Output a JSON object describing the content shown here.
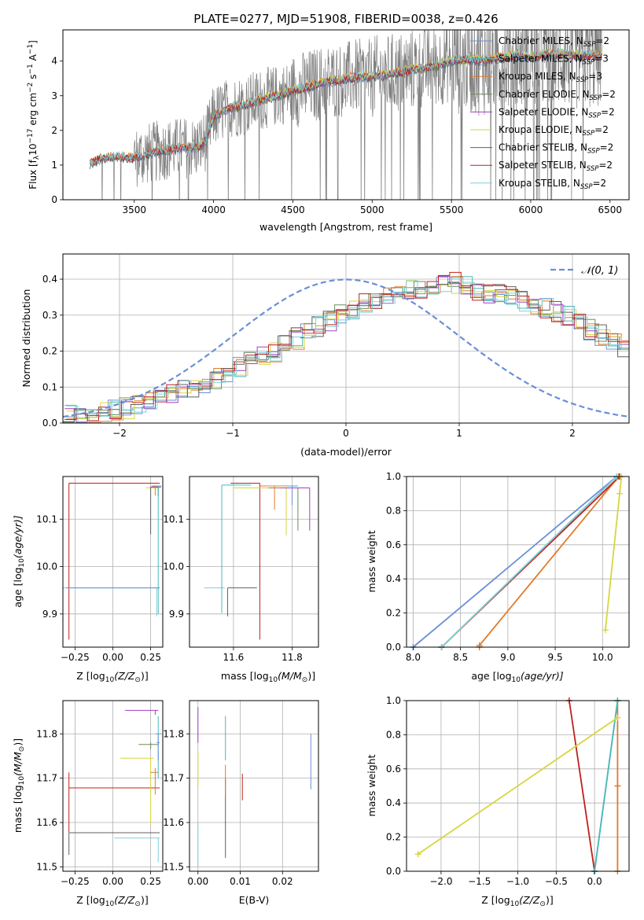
{
  "title": "PLATE=0277, MJD=51908, FIBERID=0038, z=0.426",
  "colors": {
    "chabrier_miles": "#6a8fd8",
    "salpeter_miles": "#4bb8b8",
    "kroupa_miles": "#e07b2a",
    "chabrier_elodie": "#6e8c5a",
    "salpeter_elodie": "#a040c0",
    "kroupa_elodie": "#d6d640",
    "chabrier_stelib": "#606060",
    "salpeter_stelib": "#c0201c",
    "kroupa_stelib": "#7fd0d8",
    "data_spectrum": "#808080",
    "normal_curve": "#6a8fd8"
  },
  "chart_data": [
    {
      "type": "line",
      "id": "spectrum",
      "title": "PLATE=0277, MJD=51908, FIBERID=0038, z=0.426",
      "xlabel": "wavelength [Angstrom, rest frame]",
      "ylabel_main": "Flux [f",
      "ylabel_sub": "λ",
      "ylabel_rest": "10",
      "ylabel_exp": "−17",
      "ylabel_tail": " erg cm",
      "ylabel_exp2": "−2",
      "ylabel_tail2": " s",
      "ylabel_exp3": "−1",
      "ylabel_tail3": " A",
      "ylabel_exp4": "−1",
      "ylabel_end": "]",
      "xlim": [
        3050,
        6620
      ],
      "ylim": [
        0,
        4.9
      ],
      "xticks": [
        3500,
        4000,
        4500,
        5000,
        5500,
        6000,
        6500
      ],
      "yticks": [
        0,
        1,
        2,
        3,
        4
      ],
      "legend_position": "top-right",
      "legend": [
        {
          "name": "Chabrier MILES, N",
          "sub": "SSP",
          "tail": "=2",
          "color": "chabrier_miles"
        },
        {
          "name": "Salpeter MILES, N",
          "sub": "SSP",
          "tail": "=3",
          "color": "salpeter_miles"
        },
        {
          "name": "Kroupa MILES, N",
          "sub": "SSP",
          "tail": "=3",
          "color": "kroupa_miles"
        },
        {
          "name": "Chabrier ELODIE, N",
          "sub": "SSP",
          "tail": "=2",
          "color": "chabrier_elodie"
        },
        {
          "name": "Salpeter ELODIE, N",
          "sub": "SSP",
          "tail": "=2",
          "color": "salpeter_elodie"
        },
        {
          "name": "Kroupa ELODIE, N",
          "sub": "SSP",
          "tail": "=2",
          "color": "kroupa_elodie"
        },
        {
          "name": "Chabrier STELIB, N",
          "sub": "SSP",
          "tail": "=2",
          "color": "chabrier_stelib"
        },
        {
          "name": "Salpeter STELIB, N",
          "sub": "SSP",
          "tail": "=2",
          "color": "salpeter_stelib"
        },
        {
          "name": "Kroupa STELIB, N",
          "sub": "SSP",
          "tail": "=2",
          "color": "kroupa_stelib"
        }
      ],
      "model_envelope": {
        "x": [
          3220,
          3300,
          3400,
          3500,
          3600,
          3700,
          3800,
          3900,
          3950,
          4000,
          4100,
          4200,
          4300,
          4400,
          4500,
          4600,
          4700,
          4800,
          4900,
          5000,
          5100,
          5200,
          5300,
          5400,
          5500,
          5600,
          5700,
          5800,
          5900,
          6000,
          6100,
          6200,
          6300,
          6450
        ],
        "y": [
          1.05,
          1.2,
          1.25,
          1.2,
          1.35,
          1.45,
          1.5,
          1.5,
          1.7,
          2.4,
          2.65,
          2.75,
          2.9,
          3.0,
          3.15,
          3.25,
          3.4,
          3.45,
          3.55,
          3.55,
          3.6,
          3.7,
          3.8,
          3.85,
          4.0,
          4.05,
          4.0,
          4.1,
          4.15,
          4.1,
          4.2,
          4.2,
          4.15,
          4.2
        ]
      }
    },
    {
      "type": "bar",
      "id": "residuals",
      "xlabel": "(data-model)/error",
      "ylabel": "Normed distribution",
      "xlim": [
        -2.5,
        2.5
      ],
      "ylim": [
        0,
        0.47
      ],
      "xticks": [
        -2,
        -1,
        0,
        1,
        2
      ],
      "xtick_labels": [
        "−2",
        "−1",
        "0",
        "1",
        "2"
      ],
      "yticks": [
        0.0,
        0.1,
        0.2,
        0.3,
        0.4
      ],
      "ytick_labels": [
        "0.0",
        "0.1",
        "0.2",
        "0.3",
        "0.4"
      ],
      "legend_math": "𝒩(0, 1)",
      "bin_width": 0.1,
      "bin_start": -2.5,
      "histogram_base": [
        0.02,
        0.02,
        0.025,
        0.03,
        0.035,
        0.04,
        0.05,
        0.06,
        0.07,
        0.08,
        0.09,
        0.1,
        0.11,
        0.125,
        0.14,
        0.155,
        0.17,
        0.185,
        0.2,
        0.215,
        0.235,
        0.255,
        0.27,
        0.285,
        0.3,
        0.315,
        0.33,
        0.34,
        0.35,
        0.36,
        0.37,
        0.37,
        0.38,
        0.39,
        0.39,
        0.38,
        0.37,
        0.36,
        0.355,
        0.35,
        0.34,
        0.33,
        0.32,
        0.31,
        0.3,
        0.28,
        0.26,
        0.245,
        0.23,
        0.21
      ]
    },
    {
      "type": "scatter",
      "id": "age_vs_Z",
      "xlabel": "Z [log",
      "xlabel_sub": "10",
      "xlabel_mid": "(Z/Z",
      "xlabel_sub2": "⊙",
      "xlabel_end": ")]",
      "ylabel": "age  [log",
      "ylabel_sub": "10",
      "ylabel_end": "(age/yr)]",
      "xlim": [
        -0.33,
        0.33
      ],
      "ylim": [
        9.83,
        10.19
      ],
      "xticks": [
        -0.25,
        0.0,
        0.25
      ],
      "xtick_labels": [
        "−0.25",
        "0.00",
        "0.25"
      ],
      "yticks": [
        9.9,
        10.0,
        10.1
      ],
      "ytick_labels": [
        "9.9",
        "10.0",
        "10.1"
      ]
    },
    {
      "type": "scatter",
      "id": "age_vs_mass",
      "xlabel": "mass [log",
      "xlabel_sub": "10",
      "xlabel_mid": "(M/M",
      "xlabel_sub2": "⊙",
      "xlabel_end": ")]",
      "xlim": [
        11.45,
        11.89
      ],
      "ylim": [
        9.83,
        10.19
      ],
      "xticks": [
        11.6,
        11.8
      ],
      "xtick_labels": [
        "11.6",
        "11.8"
      ],
      "yticks": [
        9.9,
        10.0,
        10.1
      ],
      "ytick_labels": [
        "9.9",
        "10.0",
        "10.1"
      ]
    },
    {
      "type": "line",
      "id": "cumulative_mass_vs_age",
      "xlabel": "age  [log",
      "xlabel_sub": "10",
      "xlabel_end": "(age/yr)]",
      "ylabel": "mass weight",
      "xlim": [
        7.93,
        10.28
      ],
      "ylim": [
        0,
        1
      ],
      "xticks": [
        8.0,
        8.5,
        9.0,
        9.5,
        10.0
      ],
      "xtick_labels": [
        "8.0",
        "8.5",
        "9.0",
        "9.5",
        "10.0"
      ],
      "yticks": [
        0.0,
        0.2,
        0.4,
        0.6,
        0.8,
        1.0
      ],
      "ytick_labels": [
        "0.0",
        "0.2",
        "0.4",
        "0.6",
        "0.8",
        "1.0"
      ],
      "series": [
        {
          "color": "chabrier_miles",
          "x": [
            8.0,
            10.15
          ],
          "y": [
            0.0,
            1.0
          ]
        },
        {
          "color": "kroupa_miles",
          "x": [
            8.7,
            8.7,
            10.17
          ],
          "y": [
            0.0,
            0.01,
            1.0
          ]
        },
        {
          "color": "salpeter_miles",
          "x": [
            8.3,
            10.15
          ],
          "y": [
            0.0,
            1.0
          ]
        },
        {
          "color": "salpeter_stelib",
          "x": [
            8.3,
            10.18
          ],
          "y": [
            0.0,
            1.0
          ]
        },
        {
          "color": "kroupa_stelib",
          "x": [
            8.3,
            10.15
          ],
          "y": [
            0.0,
            1.0
          ]
        },
        {
          "color": "kroupa_elodie",
          "x": [
            10.03,
            10.18,
            10.2
          ],
          "y": [
            0.1,
            0.9,
            1.0
          ]
        }
      ]
    },
    {
      "type": "scatter",
      "id": "mass_vs_Z",
      "xlabel": "Z [log",
      "xlabel_sub": "10",
      "xlabel_mid": "(Z/Z",
      "xlabel_sub2": "⊙",
      "xlabel_end": ")]",
      "ylabel": "mass [log",
      "ylabel_sub": "10",
      "ylabel_mid": "(M/M",
      "ylabel_sub2": "⊙",
      "ylabel_end": ")]",
      "xlim": [
        -0.33,
        0.33
      ],
      "ylim": [
        11.49,
        11.875
      ],
      "xticks": [
        -0.25,
        0.0,
        0.25
      ],
      "xtick_labels": [
        "−0.25",
        "0.00",
        "0.25"
      ],
      "yticks": [
        11.5,
        11.6,
        11.7,
        11.8
      ],
      "ytick_labels": [
        "11.5",
        "11.6",
        "11.7",
        "11.8"
      ]
    },
    {
      "type": "scatter",
      "id": "mass_vs_ebv",
      "xlabel": "E(B-V)",
      "xlim": [
        -0.002,
        0.0285
      ],
      "ylim": [
        11.49,
        11.875
      ],
      "xticks": [
        0.0,
        0.01,
        0.02
      ],
      "xtick_labels": [
        "0.00",
        "0.01",
        "0.02"
      ],
      "yticks": [
        11.5,
        11.6,
        11.7,
        11.8
      ],
      "ytick_labels": [
        "11.5",
        "11.6",
        "11.7",
        "11.8"
      ]
    },
    {
      "type": "line",
      "id": "cumulative_mass_vs_Z",
      "xlabel": "Z [log",
      "xlabel_sub": "10",
      "xlabel_mid": "(Z/Z",
      "xlabel_sub2": "⊙",
      "xlabel_end": ")]",
      "ylabel": "mass weight",
      "xlim": [
        -2.45,
        0.45
      ],
      "ylim": [
        0,
        1
      ],
      "xticks": [
        -2.0,
        -1.5,
        -1.0,
        -0.5,
        0.0
      ],
      "xtick_labels": [
        "−2.0",
        "−1.5",
        "−1.0",
        "−0.5",
        "0.0"
      ],
      "yticks": [
        0.0,
        0.2,
        0.4,
        0.6,
        0.8,
        1.0
      ],
      "ytick_labels": [
        "0.0",
        "0.2",
        "0.4",
        "0.6",
        "0.8",
        "1.0"
      ],
      "series": [
        {
          "color": "salpeter_stelib",
          "x": [
            -0.33,
            0.0
          ],
          "y": [
            1.0,
            0.0
          ]
        },
        {
          "color": "kroupa_miles",
          "x": [
            0.3,
            0.3,
            0.3
          ],
          "y": [
            0.0,
            0.5,
            1.0
          ]
        },
        {
          "color": "kroupa_stelib",
          "x": [
            0.0,
            0.3
          ],
          "y": [
            0.0,
            1.0
          ]
        },
        {
          "color": "salpeter_miles",
          "x": [
            0.0,
            0.3
          ],
          "y": [
            0.0,
            1.0
          ]
        },
        {
          "color": "kroupa_elodie",
          "x": [
            -2.3,
            0.3
          ],
          "y": [
            0.1,
            0.9
          ]
        }
      ]
    }
  ]
}
